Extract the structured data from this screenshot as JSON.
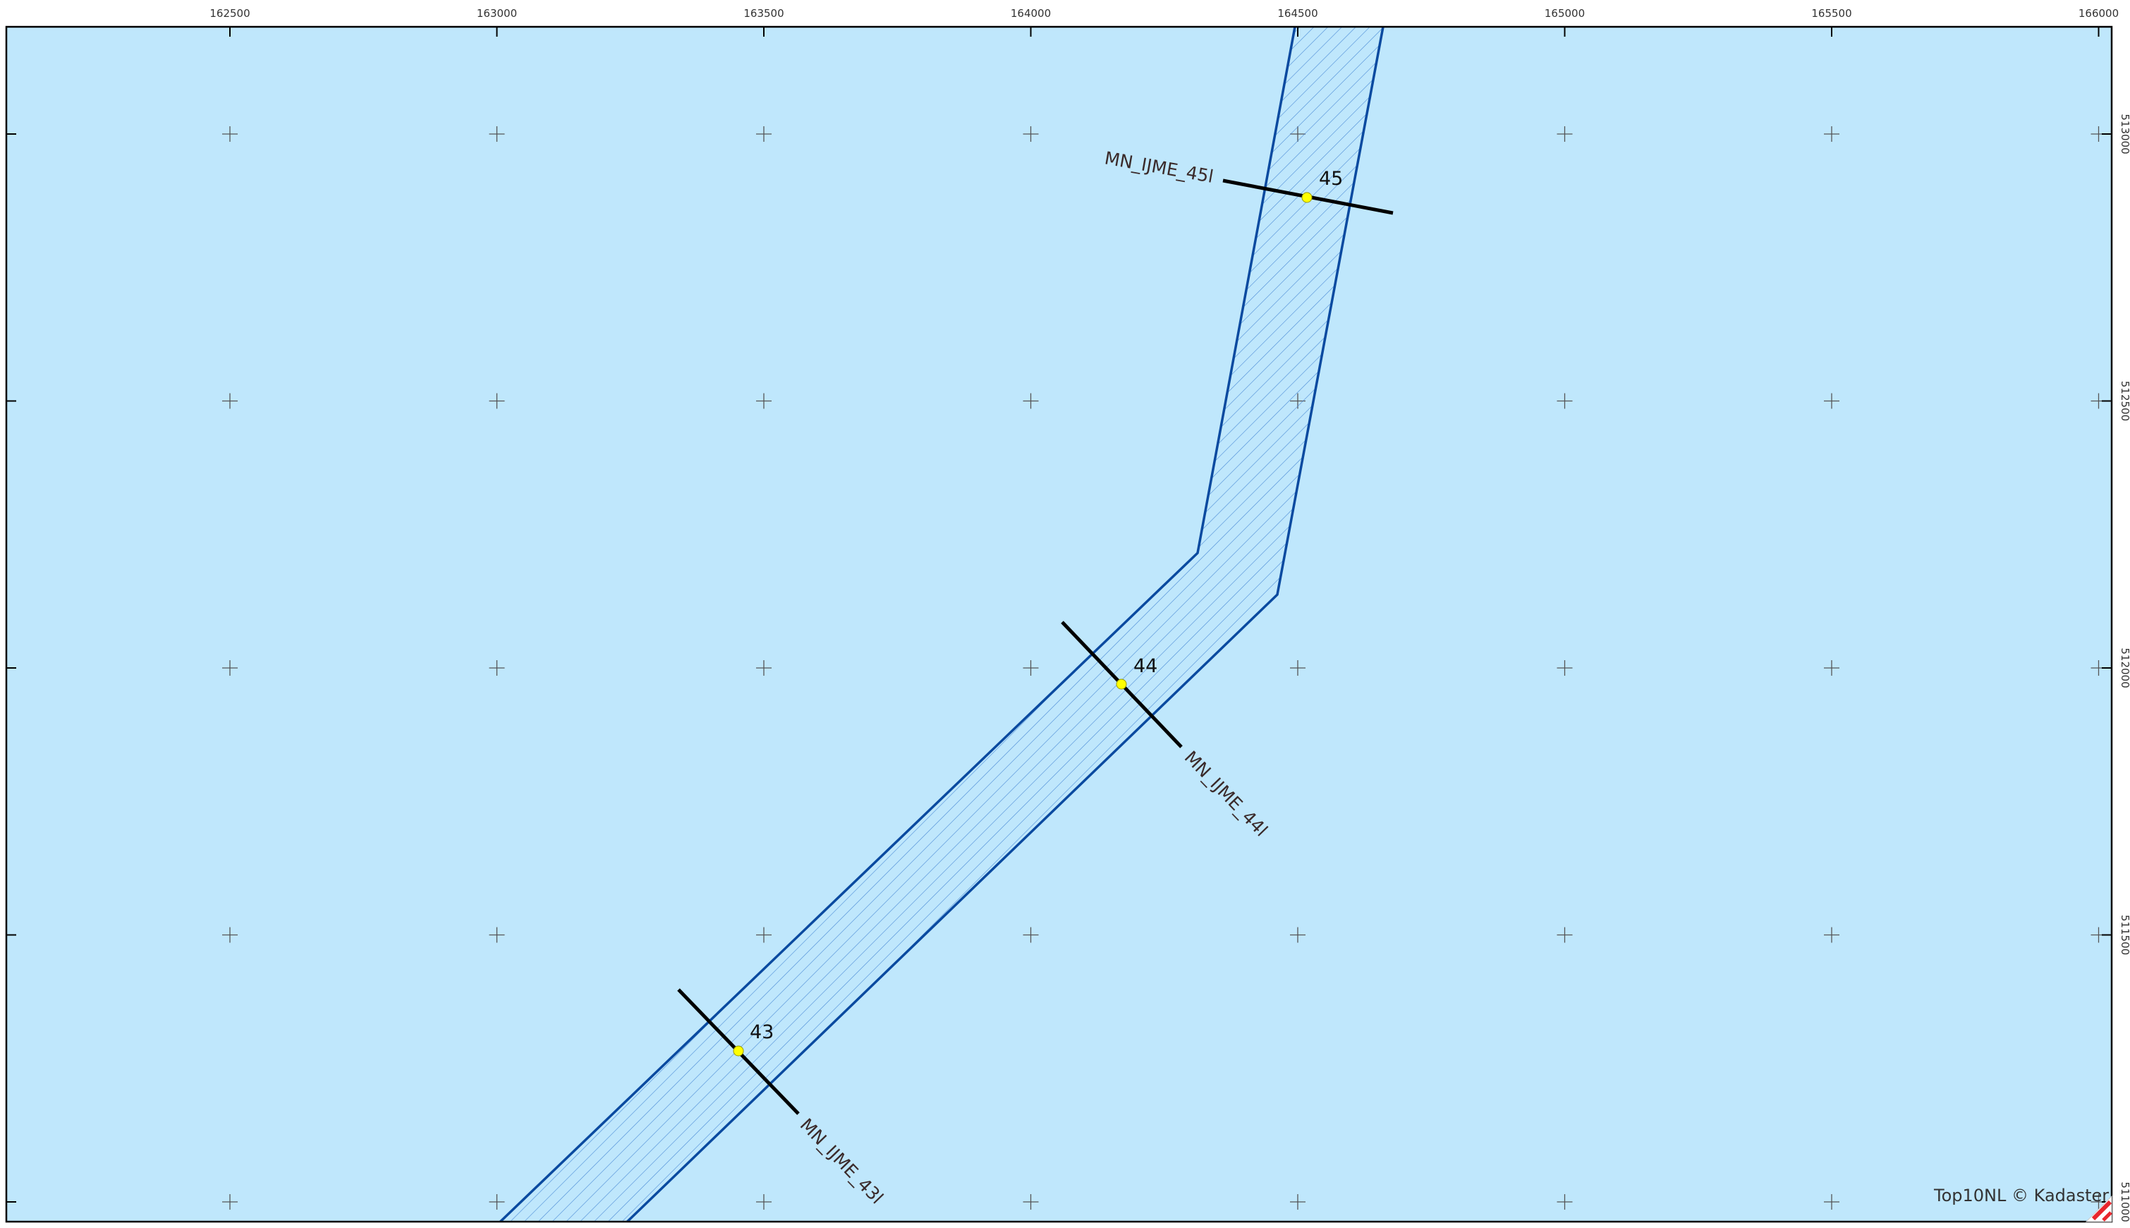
{
  "map": {
    "colors": {
      "water": "#bfe7fc",
      "channel_outline": "#0a4aa0",
      "hatch": "#3a7fd0",
      "profile_line": "#000000",
      "point": "#ffff00",
      "grid_cross": "#555555"
    },
    "x_ticks": [
      "162500",
      "163000",
      "163500",
      "164000",
      "164500",
      "165000",
      "165500",
      "166000"
    ],
    "y_ticks": [
      "513000",
      "512500",
      "512000",
      "511500",
      "511000"
    ],
    "profiles": [
      {
        "id": "43",
        "name": "MN_IJME_43l"
      },
      {
        "id": "44",
        "name": "MN_IJME_44l"
      },
      {
        "id": "45",
        "name": "MN_IJME_45l"
      }
    ],
    "attribution": "Top10NL © Kadaster"
  }
}
